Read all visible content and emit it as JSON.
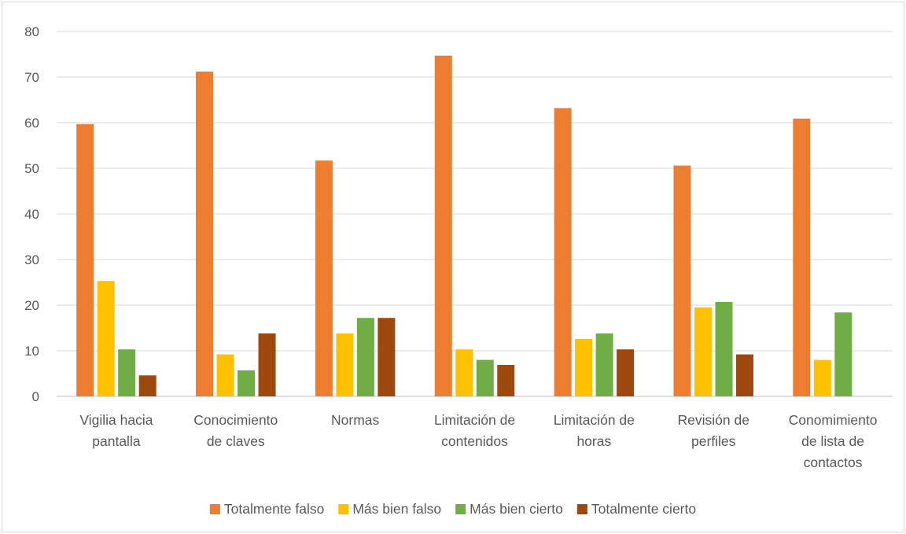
{
  "chart_data": {
    "type": "bar",
    "title": "",
    "xlabel": "",
    "ylabel": "",
    "ylim": [
      0,
      80
    ],
    "yticks": [
      0,
      10,
      20,
      30,
      40,
      50,
      60,
      70,
      80
    ],
    "grid": true,
    "legend_position": "bottom",
    "categories": [
      [
        "Vigilia hacia",
        "pantalla"
      ],
      [
        "Conocimiento",
        "de claves"
      ],
      [
        "Normas"
      ],
      [
        "Limitación de",
        "contenidos"
      ],
      [
        "Limitación de",
        "horas"
      ],
      [
        "Revisión de",
        "perfiles"
      ],
      [
        "Conomimiento",
        "de lista de",
        "contactos"
      ]
    ],
    "series": [
      {
        "name": "Totalmente falso",
        "color": "#ED7D31",
        "values": [
          59.7,
          71.2,
          51.7,
          74.7,
          63.2,
          50.6,
          60.9
        ]
      },
      {
        "name": "Más bien falso",
        "color": "#FFC000",
        "values": [
          25.3,
          9.2,
          13.8,
          10.3,
          12.6,
          19.5,
          8.0
        ]
      },
      {
        "name": "Más bien cierto",
        "color": "#70AD47",
        "values": [
          10.3,
          5.7,
          17.2,
          8.0,
          13.8,
          20.7,
          18.4
        ]
      },
      {
        "name": "Totalmente cierto",
        "color": "#9E480E",
        "values": [
          4.6,
          13.8,
          17.2,
          6.9,
          10.3,
          9.2,
          null
        ]
      }
    ]
  }
}
